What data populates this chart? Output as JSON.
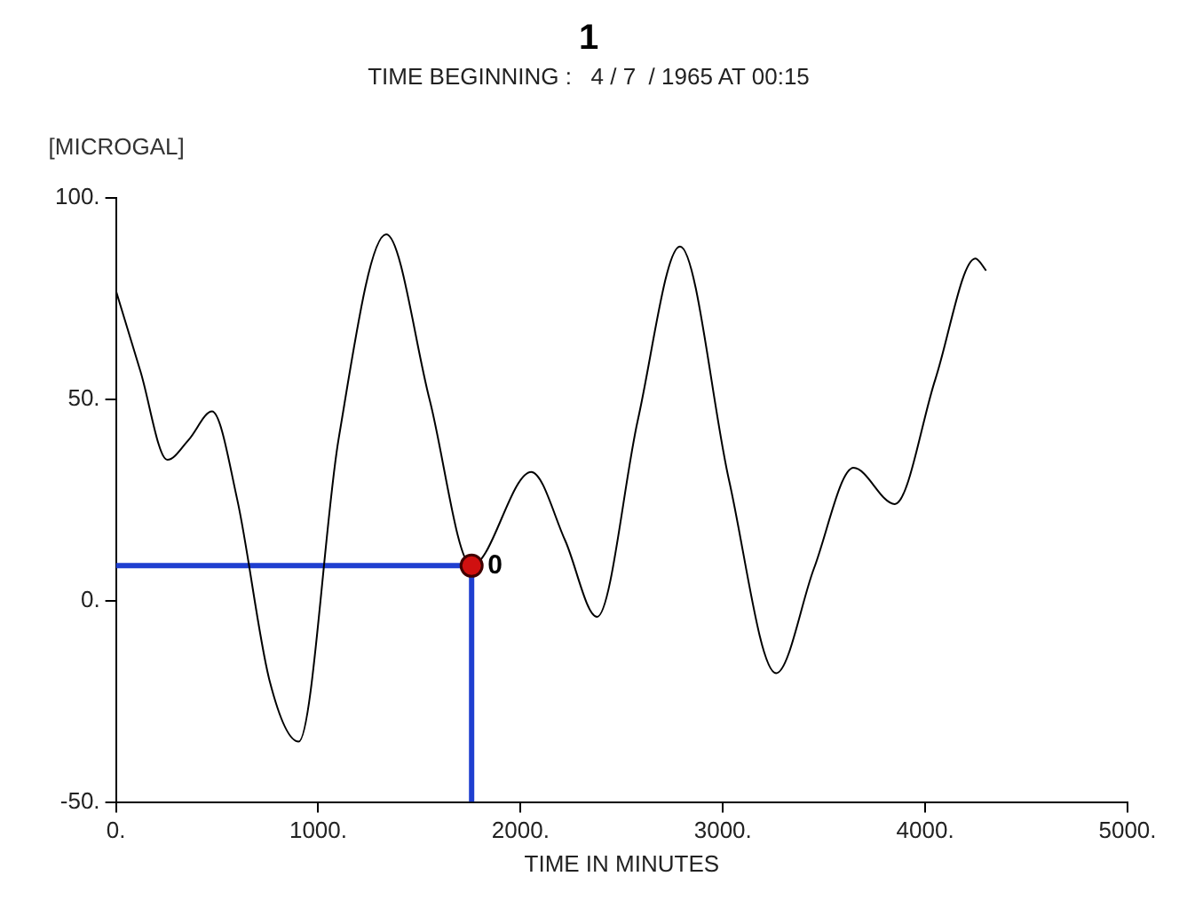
{
  "chart_data": {
    "type": "line",
    "title": "1",
    "subtitle": "TIME BEGINNING :   4 / 7  / 1965 AT 00:15",
    "xlabel": "TIME IN MINUTES",
    "ylabel": "[MICROGAL]",
    "xlim": [
      0,
      5000
    ],
    "ylim": [
      -50,
      100
    ],
    "xticks": [
      {
        "value": 0,
        "label": "0."
      },
      {
        "value": 1000,
        "label": "1000."
      },
      {
        "value": 2000,
        "label": "2000."
      },
      {
        "value": 3000,
        "label": "3000."
      },
      {
        "value": 4000,
        "label": "4000."
      },
      {
        "value": 5000,
        "label": "5000."
      }
    ],
    "yticks": [
      {
        "value": -50,
        "label": "-50."
      },
      {
        "value": 0,
        "label": "0."
      },
      {
        "value": 50,
        "label": "50."
      },
      {
        "value": 100,
        "label": "100."
      }
    ],
    "grid": false,
    "legend": false,
    "series": [
      {
        "color": "#000000",
        "marker": "none",
        "x": [
          0,
          121,
          254,
          360,
          475,
          600,
          760,
          903,
          1100,
          1336,
          1550,
          1758,
          2053,
          2220,
          2378,
          2580,
          2788,
          3030,
          3263,
          3450,
          3646,
          3850,
          4050,
          4248,
          4301
        ],
        "values": [
          77,
          57,
          35,
          40,
          47,
          25,
          -20,
          -35,
          40,
          91,
          50,
          8.7,
          32,
          15,
          -4,
          45,
          88,
          30,
          -18,
          8,
          33,
          24,
          55,
          85,
          82
        ]
      },
      {
        "color": "#1f3fd0",
        "marker": "none",
        "x": [
          0,
          1758,
          1758
        ],
        "values": [
          8.7,
          8.7,
          -50
        ]
      },
      {
        "type": "scatter",
        "color": "#d01010",
        "marker": "circle",
        "x": [
          1758
        ],
        "values": [
          8.7
        ]
      }
    ],
    "annotations": [
      {
        "text": "0",
        "x": 1758,
        "y": 8.7
      }
    ]
  }
}
